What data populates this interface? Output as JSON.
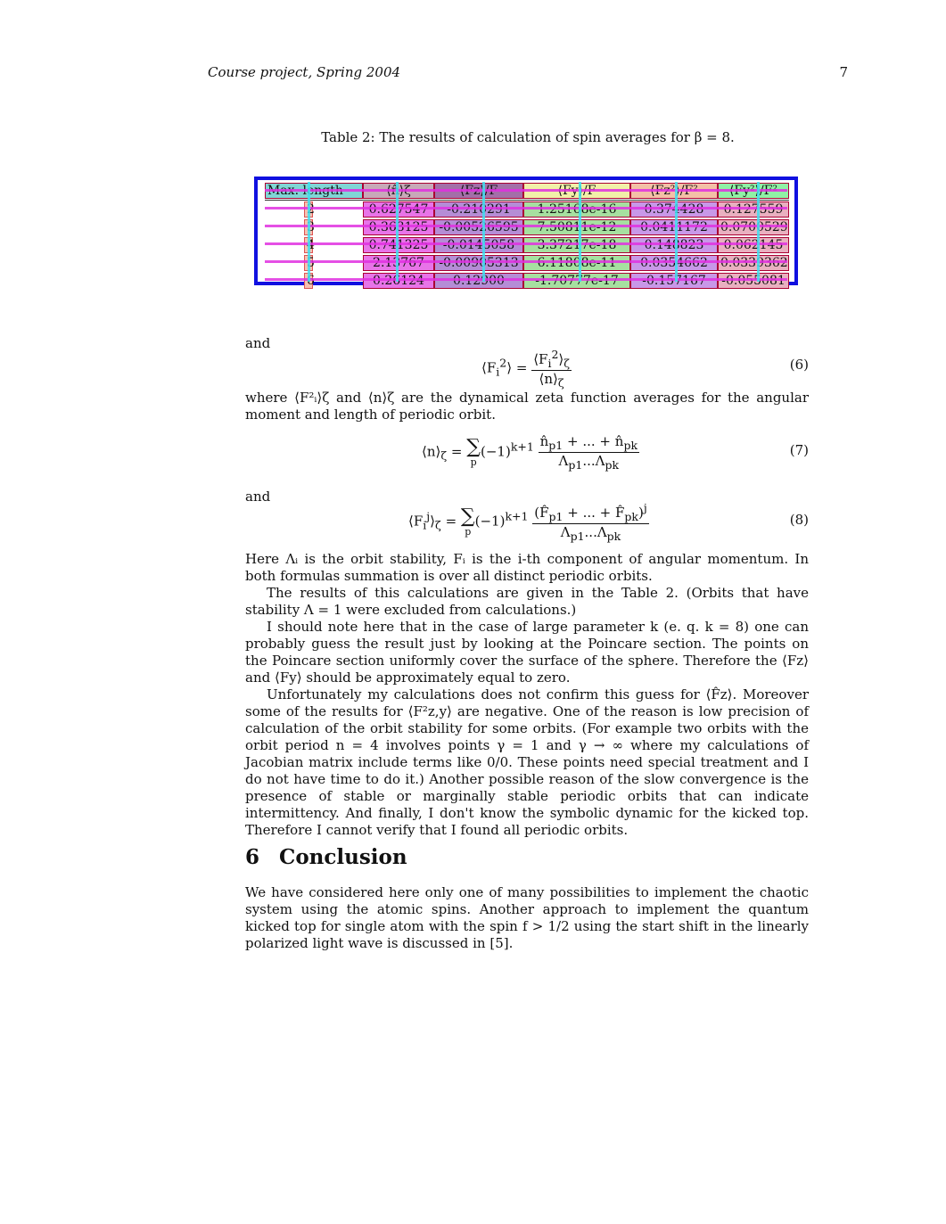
{
  "header": {
    "title": "Course project, Spring 2004",
    "page_number": "7"
  },
  "table": {
    "caption": "Table 2: The results of calculation of spin averages for β = 8.",
    "columns": [
      "Max. length",
      "⟨n̂⟩ζ",
      "⟨Fz⟩/F",
      "⟨Fy⟩/F",
      "⟨Fz²⟩/F²",
      "⟨Fy²⟩/F²"
    ],
    "rows": [
      [
        "2",
        "0.627547",
        "-0.210291",
        "1.25168e-16",
        "0.374428",
        "0.127559"
      ],
      [
        "3",
        "0.363125",
        "-0.00526595",
        "7.50811e-12",
        "0.0411172",
        "0.0700529"
      ],
      [
        "4",
        "0.741325",
        "-0.0145058",
        "3.37217e-18",
        "0.148823",
        "0.062145"
      ],
      [
        "5",
        "2.13767",
        "-0.00905313",
        "6.11808e-11",
        "0.0354662",
        "0.0339362"
      ],
      [
        "6",
        "0.26124",
        "0.12900",
        "-1.70777e-17",
        "-0.157167",
        "-0.055081"
      ]
    ]
  },
  "text": {
    "and1": "and",
    "eq6_num": "(6)",
    "where_para": "where ⟨F²ᵢ⟩ζ and ⟨n⟩ζ are the dynamical zeta function averages for the angular moment and length of periodic orbit.",
    "eq7_num": "(7)",
    "and2": "and",
    "eq8_num": "(8)",
    "here_para": "Here Λᵢ is the orbit stability, Fᵢ is the i-th component of angular momentum. In both formulas summation is over all distinct periodic orbits.",
    "results_para": "The results of this calculations are given in the Table 2. (Orbits that have stability Λ = 1 were excluded from calculations.)",
    "note_para": "I should note here that in the case of large parameter k (e. q. k = 8) one can probably guess the result just by looking at the Poincare section. The points on the Poincare section uniformly cover the surface of the sphere. Therefore the ⟨Fz⟩ and ⟨Fy⟩ should be approximately equal to zero.",
    "unfortunately_para": "Unfortunately my calculations does not confirm this guess for ⟨F̂z⟩. Moreover some of the results for ⟨F²z,y⟩ are negative. One of the reason is low precision of calculation of the orbit stability for some orbits. (For example two orbits with the orbit period n = 4 involves points γ = 1 and γ → ∞ where my calculations of Jacobian matrix include terms like 0/0. These points need special treatment and I do not have time to do it.) Another possible reason of the slow convergence is the presence of stable or marginally stable periodic orbits that can indicate intermittency. And finally, I don't know the symbolic dynamic for the kicked top. Therefore I cannot verify that I found all periodic orbits.",
    "section_number": "6",
    "section_title": "Conclusion",
    "conclusion_para": "We have considered here only one of many possibilities to implement the chaotic system using the atomic spins. Another approach to implement the quantum kicked top for single atom with the spin f > 1/2 using the start shift in the linearly polarized light wave is discussed in [5]."
  }
}
